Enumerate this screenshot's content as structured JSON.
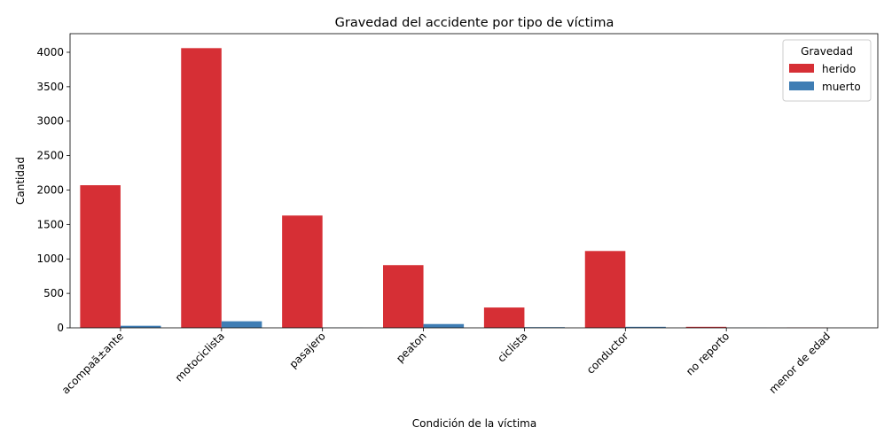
{
  "chart_data": {
    "type": "bar",
    "title": "Gravedad del accidente por tipo de víctima",
    "xlabel": "Condición de la víctima",
    "ylabel": "Cantidad",
    "categories": [
      "acompaã±ante",
      "motociclista",
      "pasajero",
      "peaton",
      "ciclista",
      "conductor",
      "no reporto",
      "menor de edad"
    ],
    "series": [
      {
        "name": "herido",
        "color": "#d62f35",
        "values": [
          2070,
          4060,
          1630,
          910,
          295,
          1115,
          15,
          3
        ]
      },
      {
        "name": "muerto",
        "color": "#3f7db4",
        "values": [
          30,
          95,
          2,
          55,
          10,
          15,
          1,
          0
        ]
      }
    ],
    "ylim": [
      0,
      4270
    ],
    "yticks": [
      0,
      500,
      1000,
      1500,
      2000,
      2500,
      3000,
      3500,
      4000
    ],
    "legend": {
      "title": "Gravedad",
      "placement": "top-right"
    },
    "grid": false
  }
}
